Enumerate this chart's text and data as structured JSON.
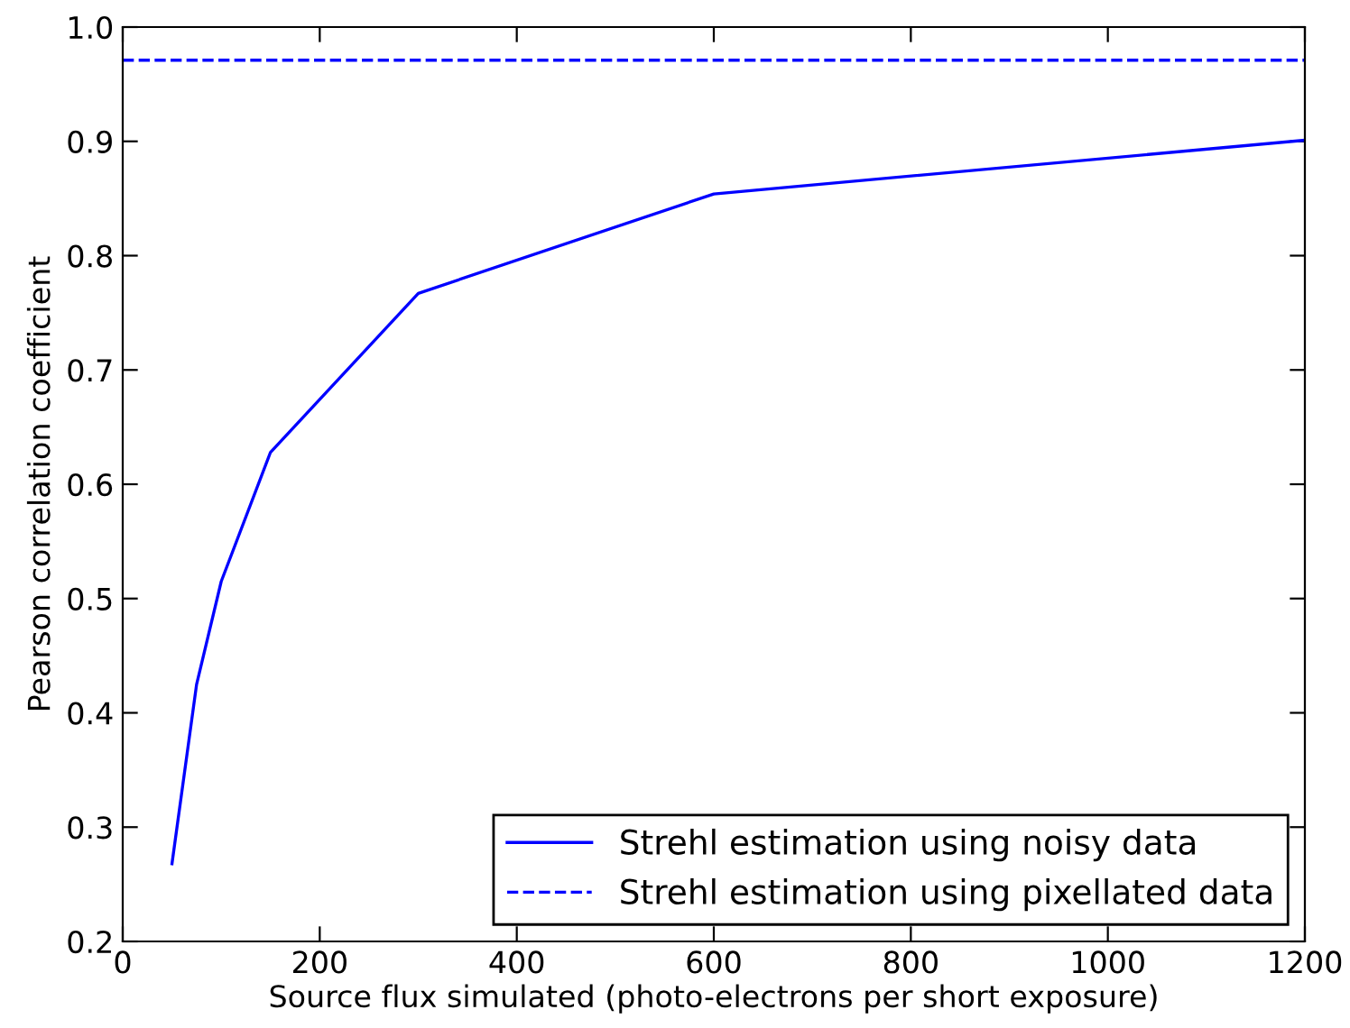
{
  "chart_data": {
    "type": "line",
    "xlabel": "Source flux simulated (photo-electrons per short exposure)",
    "ylabel": "Pearson correlation coefficient",
    "series": [
      {
        "name": "Strehl estimation using noisy data",
        "color": "#0000ff",
        "x": [
          50,
          75,
          100,
          150,
          300,
          600,
          1200
        ],
        "values": [
          0.268,
          0.425,
          0.515,
          0.628,
          0.767,
          0.854,
          0.901
        ],
        "line_style": "solid"
      },
      {
        "name": "Strehl estimation using pixellated data",
        "color": "#0000ff",
        "x": [
          0,
          1200
        ],
        "values": [
          0.971,
          0.971
        ],
        "line_style": "dashed"
      }
    ],
    "xlim": [
      0,
      1200
    ],
    "xticks": [
      0,
      200,
      400,
      600,
      800,
      1000,
      1200
    ],
    "ylim": [
      0.2,
      1.0
    ],
    "yticks": [
      0.2,
      0.3,
      0.4,
      0.5,
      0.6,
      0.7,
      0.8,
      0.9,
      {
        "value": 1.0,
        "label": "1.0"
      }
    ],
    "grid": false,
    "legend": "bottom right",
    "marker": "none"
  }
}
